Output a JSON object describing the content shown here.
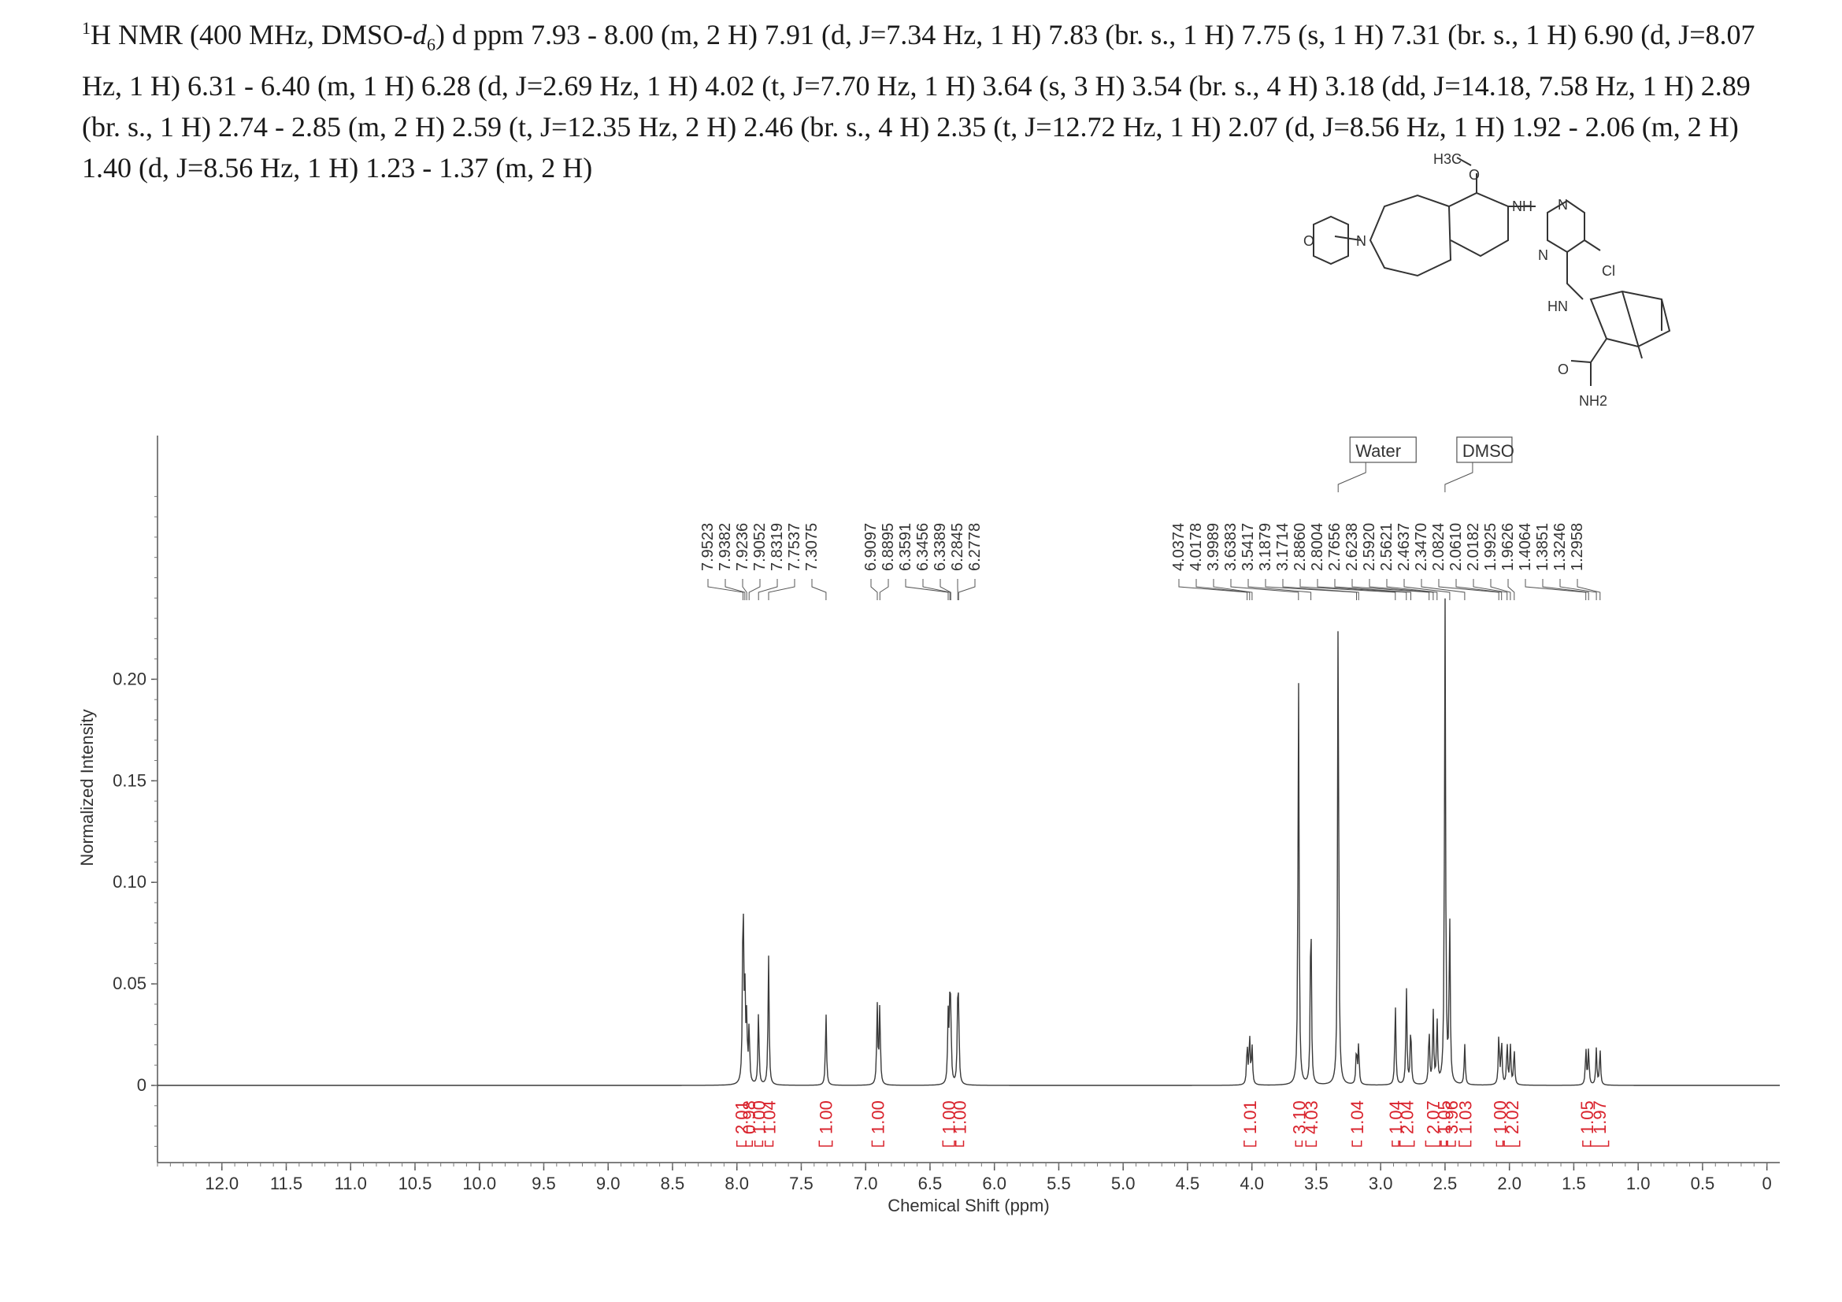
{
  "caption": {
    "prefix_sup": "1",
    "text_1": "H NMR (400 MHz, DMSO-",
    "d_letter": "d",
    "d_sub": "6",
    "text_2": ") d ppm 7.93 - 8.00 (m, 2 H) 7.91 (d, J=7.34 Hz, 1 H) 7.83 (br. s., 1 H) 7.75 (s, 1 H) 7.31 (br. s., 1 H) 6.90 (d, J=8.07 Hz, 1 H) 6.31 - 6.40 (m, 1 H) 6.28 (d, J=2.69 Hz, 1 H) 4.02 (t, J=7.70 Hz, 1 H) 3.64 (s, 3 H) 3.54 (br. s., 4 H) 3.18 (dd, J=14.18, 7.58 Hz, 1 H) 2.89 (br. s., 1 H) 2.74 - 2.85 (m, 2 H) 2.59 (t, J=12.35 Hz, 2 H) 2.46 (br. s., 4 H) 2.35 (t, J=12.72 Hz, 1 H) 2.07 (d, J=8.56 Hz, 1 H) 1.92 - 2.06 (m, 2 H) 1.40 (d, J=8.56 Hz, 1 H) 1.23 - 1.37 (m, 2 H)"
  },
  "structure_labels": {
    "methyl": "H3C",
    "oxygen_methoxy": "O",
    "morpholine_o": "O",
    "morpholine_n": "N",
    "nh_1": "NH",
    "pyrimidine_n1": "N",
    "pyrimidine_n2": "N",
    "chloro": "Cl",
    "nh_2": "HN",
    "carbonyl_o": "O",
    "amide_nh2": "NH2"
  },
  "colors": {
    "spectrum": "#3a3a3a",
    "integral": "#d9232d",
    "axis": "#555555",
    "peak_label": "#333333"
  },
  "chart_data": {
    "type": "line",
    "xlabel": "Chemical Shift (ppm)",
    "ylabel": "Normalized Intensity",
    "xlim": [
      12.5,
      -0.1
    ],
    "ylim": [
      -0.038,
      0.32
    ],
    "x_reversed": true,
    "x_ticks": [
      "12.0",
      "11.5",
      "11.0",
      "10.5",
      "10.0",
      "9.5",
      "9.0",
      "8.5",
      "8.0",
      "7.5",
      "7.0",
      "6.5",
      "6.0",
      "5.5",
      "5.0",
      "4.5",
      "4.0",
      "3.5",
      "3.0",
      "2.5",
      "2.0",
      "1.5",
      "1.0",
      "0.5",
      "0"
    ],
    "y_ticks": [
      "0",
      "0.05",
      "0.10",
      "0.15",
      "0.20"
    ],
    "annotations": [
      {
        "text": "Water",
        "x": 3.33
      },
      {
        "text": "DMSO",
        "x": 2.5
      }
    ],
    "peak_labels": [
      {
        "group": 1,
        "values": [
          "7.9523",
          "7.9382",
          "7.9236",
          "7.9052",
          "7.8319",
          "7.7537",
          "7.3075"
        ]
      },
      {
        "group": 2,
        "values": [
          "6.9097",
          "6.8895",
          "6.3591",
          "6.3456",
          "6.3389",
          "6.2845",
          "6.2778"
        ]
      },
      {
        "group": 3,
        "values": [
          "4.0374",
          "4.0178",
          "3.9989",
          "3.6383",
          "3.5417",
          "3.1879",
          "3.1714",
          "2.8860",
          "2.8004",
          "2.7656",
          "2.6238",
          "2.5920",
          "2.5621",
          "2.4637",
          "2.3470",
          "2.0824",
          "2.0610",
          "2.0182",
          "1.9925",
          "1.9626",
          "1.4064",
          "1.3851",
          "1.3246",
          "1.2958"
        ]
      }
    ],
    "peaks": [
      {
        "x": 7.952,
        "y": 0.098
      },
      {
        "x": 7.938,
        "y": 0.042
      },
      {
        "x": 7.924,
        "y": 0.03
      },
      {
        "x": 7.905,
        "y": 0.028
      },
      {
        "x": 7.832,
        "y": 0.036
      },
      {
        "x": 7.754,
        "y": 0.064
      },
      {
        "x": 7.308,
        "y": 0.036
      },
      {
        "x": 6.91,
        "y": 0.039
      },
      {
        "x": 6.89,
        "y": 0.039
      },
      {
        "x": 6.359,
        "y": 0.033
      },
      {
        "x": 6.346,
        "y": 0.033
      },
      {
        "x": 6.339,
        "y": 0.03
      },
      {
        "x": 6.285,
        "y": 0.033
      },
      {
        "x": 6.278,
        "y": 0.033
      },
      {
        "x": 4.037,
        "y": 0.02
      },
      {
        "x": 4.018,
        "y": 0.024
      },
      {
        "x": 3.999,
        "y": 0.019
      },
      {
        "x": 3.638,
        "y": 0.203
      },
      {
        "x": 3.542,
        "y": 0.092
      },
      {
        "x": 3.33,
        "y": 0.24
      },
      {
        "x": 3.188,
        "y": 0.018
      },
      {
        "x": 3.171,
        "y": 0.02
      },
      {
        "x": 2.886,
        "y": 0.04
      },
      {
        "x": 2.8,
        "y": 0.048
      },
      {
        "x": 2.766,
        "y": 0.03
      },
      {
        "x": 2.624,
        "y": 0.028
      },
      {
        "x": 2.592,
        "y": 0.036
      },
      {
        "x": 2.562,
        "y": 0.032
      },
      {
        "x": 2.5,
        "y": 0.24
      },
      {
        "x": 2.464,
        "y": 0.082
      },
      {
        "x": 2.347,
        "y": 0.02
      },
      {
        "x": 2.082,
        "y": 0.025
      },
      {
        "x": 2.061,
        "y": 0.022
      },
      {
        "x": 2.018,
        "y": 0.021
      },
      {
        "x": 1.993,
        "y": 0.02
      },
      {
        "x": 1.963,
        "y": 0.018
      },
      {
        "x": 1.406,
        "y": 0.018
      },
      {
        "x": 1.385,
        "y": 0.018
      },
      {
        "x": 1.325,
        "y": 0.018
      },
      {
        "x": 1.296,
        "y": 0.018
      }
    ],
    "integrals": [
      {
        "value": "2.01",
        "from": 8.0,
        "to": 7.93
      },
      {
        "value": "0.98",
        "from": 7.93,
        "to": 7.88
      },
      {
        "value": "1.00",
        "from": 7.86,
        "to": 7.8
      },
      {
        "value": "1.04",
        "from": 7.78,
        "to": 7.72
      },
      {
        "value": "1.00",
        "from": 7.36,
        "to": 7.26
      },
      {
        "value": "1.00",
        "from": 6.95,
        "to": 6.86
      },
      {
        "value": "1.00",
        "from": 6.4,
        "to": 6.31
      },
      {
        "value": "1.00",
        "from": 6.3,
        "to": 6.24
      },
      {
        "value": "1.01",
        "from": 4.06,
        "to": 3.97
      },
      {
        "value": "3.10",
        "from": 3.66,
        "to": 3.61
      },
      {
        "value": "4.03",
        "from": 3.58,
        "to": 3.5
      },
      {
        "value": "1.04",
        "from": 3.22,
        "to": 3.15
      },
      {
        "value": "1.04",
        "from": 2.91,
        "to": 2.86
      },
      {
        "value": "2.04",
        "from": 2.85,
        "to": 2.74
      },
      {
        "value": "2.07",
        "from": 2.65,
        "to": 2.54
      },
      {
        "value": "1.05",
        "from": 2.53,
        "to": 2.49
      },
      {
        "value": "3.96",
        "from": 2.48,
        "to": 2.42
      },
      {
        "value": "1.03",
        "from": 2.39,
        "to": 2.3
      },
      {
        "value": "1.00",
        "from": 2.1,
        "to": 2.05
      },
      {
        "value": "2.02",
        "from": 2.04,
        "to": 1.92
      },
      {
        "value": "1.05",
        "from": 1.43,
        "to": 1.37
      },
      {
        "value": "1.97",
        "from": 1.37,
        "to": 1.23
      }
    ]
  }
}
